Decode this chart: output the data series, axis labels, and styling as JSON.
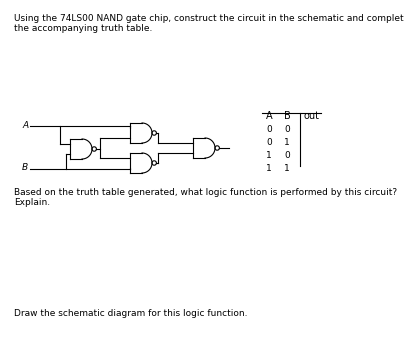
{
  "title_text": "Using the 74LS00 NAND gate chip, construct the circuit in the schematic and complet",
  "title_text2": "the accompanying truth table.",
  "label_A": "A",
  "label_B": "B",
  "table_headers": [
    "A",
    "B",
    "out"
  ],
  "table_rows": [
    [
      "0",
      "0"
    ],
    [
      "0",
      "1"
    ],
    [
      "1",
      "0"
    ],
    [
      "1",
      "1"
    ]
  ],
  "bottom_text1": "Based on the truth table generated, what logic function is performed by this circuit?",
  "bottom_text2": "Explain.",
  "footer_text": "Draw the schematic diagram for this logic function.",
  "bg_color": "#ffffff",
  "fg_color": "#000000",
  "font_size": 6.5
}
